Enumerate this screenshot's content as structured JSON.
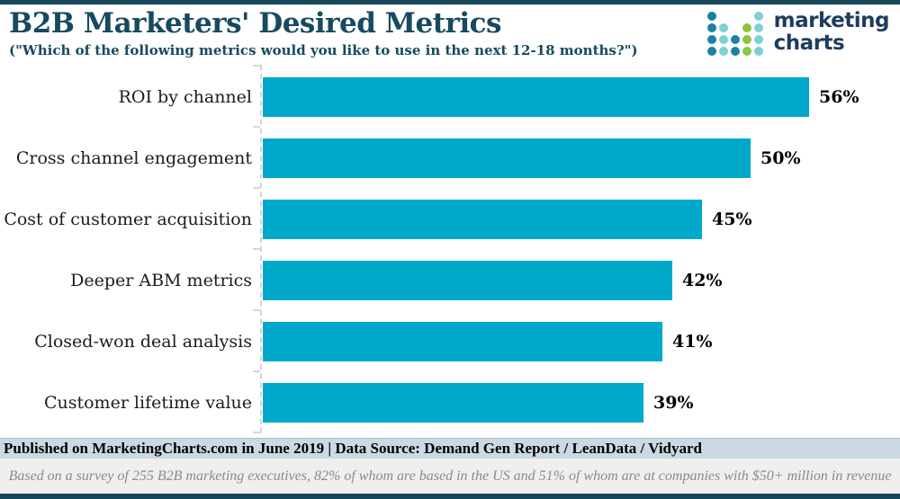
{
  "header": {
    "title": "B2B Marketers' Desired Metrics",
    "subtitle": "(\"Which of the following metrics would you like to use in the next 12-18 months?\")"
  },
  "logo": {
    "line1": "marketing",
    "line2": "charts",
    "dot_colors": {
      "dark": "#1b81a5",
      "light": "#7ed0d5",
      "green": "#8cc63f"
    },
    "dot_pattern": [
      [
        "dark",
        null,
        null,
        null,
        "light"
      ],
      [
        "dark",
        "light",
        null,
        "green",
        "light"
      ],
      [
        "dark",
        "light",
        "dark",
        "green",
        "light"
      ],
      [
        "dark",
        "light",
        "dark",
        "green",
        "light"
      ]
    ]
  },
  "chart_data": {
    "type": "bar",
    "orientation": "horizontal",
    "title": "B2B Marketers' Desired Metrics",
    "categories": [
      "ROI by channel",
      "Cross channel engagement",
      "Cost of customer acquisition",
      "Deeper ABM metrics",
      "Closed-won deal analysis",
      "Customer lifetime value"
    ],
    "values": [
      56,
      50,
      45,
      42,
      41,
      39
    ],
    "value_suffix": "%",
    "bar_color": "#00a9c9",
    "xlim": [
      0,
      65
    ],
    "grid": false,
    "legend": "none",
    "value_labels": "end-of-bar"
  },
  "footer": {
    "published_line": "Published on MarketingCharts.com in June 2019 | Data Source: Demand Gen Report / LeanData / Vidyard",
    "note_line": "Based on a survey of 255 B2B marketing executives, 82% of whom are based in the US and 51% of whom are at companies with $50+ million in revenue"
  },
  "colors": {
    "navy_border": "#16465a",
    "title_text": "#174a5f",
    "bar_teal": "#00a9c9",
    "published_strip_bg": "#cbdae2",
    "note_strip_bg": "#f0efed",
    "note_text": "#8a8a8a",
    "logo_text": "#1d3c5e"
  }
}
